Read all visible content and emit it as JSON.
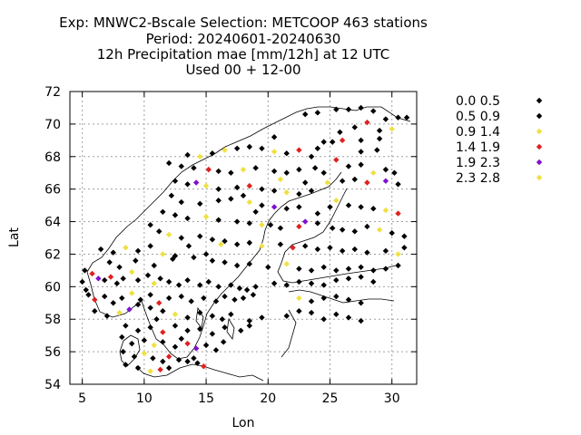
{
  "title_lines": [
    "Exp: MNWC2-Bscale   Selection: METCOOP    463 stations",
    "Period: 20240601-20240630",
    "12h Precipitation mae [mm/12h] at  12 UTC",
    "Used 00 + 12-00"
  ],
  "chart_data": {
    "type": "scatter",
    "xlabel": "Lon",
    "ylabel": "Lat",
    "xlim": [
      4,
      32
    ],
    "ylim": [
      54,
      72
    ],
    "xticks": [
      5,
      10,
      15,
      20,
      25,
      30
    ],
    "yticks": [
      54,
      56,
      58,
      60,
      62,
      64,
      66,
      68,
      70,
      72
    ],
    "grid": true,
    "legend_position": "right",
    "classes": [
      {
        "label": "0.0 0.5",
        "color": "#000000"
      },
      {
        "label": "0.5 0.9",
        "color": "#000000"
      },
      {
        "label": "0.9 1.4",
        "color": "#f0e040"
      },
      {
        "label": "1.4 1.9",
        "color": "#e02020"
      },
      {
        "label": "1.9 2.3",
        "color": "#8010d0"
      },
      {
        "label": "2.3 2.8",
        "color": "#f0e040"
      }
    ],
    "points": [
      [
        25.5,
        70.9,
        1
      ],
      [
        26.5,
        70.9,
        0
      ],
      [
        27.5,
        71.0,
        1
      ],
      [
        28.5,
        70.8,
        0
      ],
      [
        24.0,
        70.7,
        1
      ],
      [
        23.0,
        70.6,
        0
      ],
      [
        29.5,
        70.3,
        1
      ],
      [
        30.5,
        70.4,
        0
      ],
      [
        31.2,
        70.4,
        0
      ],
      [
        28.0,
        70.1,
        3
      ],
      [
        27.0,
        69.8,
        1
      ],
      [
        25.8,
        69.5,
        0
      ],
      [
        29.0,
        69.6,
        1
      ],
      [
        30.0,
        69.7,
        2
      ],
      [
        26.0,
        69.0,
        3
      ],
      [
        25.2,
        68.9,
        0
      ],
      [
        27.5,
        69.0,
        1
      ],
      [
        29.0,
        69.1,
        0
      ],
      [
        24.0,
        68.5,
        1
      ],
      [
        23.5,
        68.0,
        0
      ],
      [
        22.5,
        68.4,
        3
      ],
      [
        21.5,
        68.2,
        1
      ],
      [
        20.5,
        68.3,
        2
      ],
      [
        19.5,
        68.5,
        0
      ],
      [
        18.5,
        68.6,
        1
      ],
      [
        17.5,
        68.5,
        0
      ],
      [
        16.5,
        68.4,
        2
      ],
      [
        15.5,
        68.2,
        0
      ],
      [
        14.5,
        68.0,
        2
      ],
      [
        13.5,
        68.1,
        0
      ],
      [
        12.0,
        67.6,
        1
      ],
      [
        13.0,
        67.4,
        0
      ],
      [
        14.0,
        67.3,
        0
      ],
      [
        15.2,
        67.2,
        3
      ],
      [
        16.0,
        67.1,
        1
      ],
      [
        17.0,
        67.0,
        0
      ],
      [
        18.0,
        67.2,
        2
      ],
      [
        19.0,
        67.3,
        1
      ],
      [
        20.5,
        67.1,
        0
      ],
      [
        21.5,
        67.0,
        1
      ],
      [
        22.5,
        67.2,
        0
      ],
      [
        23.8,
        67.3,
        1
      ],
      [
        24.5,
        67.0,
        0
      ],
      [
        25.5,
        67.8,
        3
      ],
      [
        26.5,
        67.4,
        1
      ],
      [
        27.5,
        67.5,
        0
      ],
      [
        28.5,
        67.0,
        2
      ],
      [
        29.5,
        67.2,
        1
      ],
      [
        30.2,
        67.0,
        0
      ],
      [
        24.8,
        66.4,
        2
      ],
      [
        26.0,
        66.5,
        0
      ],
      [
        27.0,
        66.6,
        1
      ],
      [
        28.0,
        66.4,
        3
      ],
      [
        29.5,
        66.5,
        4
      ],
      [
        30.5,
        66.3,
        0
      ],
      [
        12.5,
        66.5,
        1
      ],
      [
        13.5,
        66.3,
        0
      ],
      [
        14.2,
        66.4,
        4
      ],
      [
        15.0,
        66.2,
        2
      ],
      [
        16.0,
        66.0,
        1
      ],
      [
        17.5,
        66.1,
        0
      ],
      [
        18.5,
        66.2,
        3
      ],
      [
        19.5,
        66.0,
        1
      ],
      [
        20.5,
        65.9,
        0
      ],
      [
        21.5,
        65.8,
        2
      ],
      [
        22.5,
        65.7,
        0
      ],
      [
        23.5,
        65.9,
        1
      ],
      [
        12.2,
        65.6,
        0
      ],
      [
        13.0,
        65.2,
        1
      ],
      [
        14.5,
        65.1,
        0
      ],
      [
        16.0,
        65.3,
        1
      ],
      [
        17.0,
        65.4,
        0
      ],
      [
        18.5,
        65.2,
        2
      ],
      [
        19.5,
        65.0,
        0
      ],
      [
        20.5,
        64.9,
        4
      ],
      [
        21.5,
        64.8,
        1
      ],
      [
        22.5,
        64.9,
        0
      ],
      [
        24.0,
        64.5,
        1
      ],
      [
        25.0,
        64.9,
        0
      ],
      [
        25.5,
        65.3,
        2
      ],
      [
        26.5,
        65.0,
        0
      ],
      [
        27.5,
        64.9,
        1
      ],
      [
        28.5,
        64.8,
        0
      ],
      [
        29.5,
        64.7,
        2
      ],
      [
        30.5,
        64.5,
        3
      ],
      [
        11.5,
        64.6,
        0
      ],
      [
        12.5,
        64.4,
        1
      ],
      [
        13.5,
        64.2,
        0
      ],
      [
        15.0,
        64.3,
        2
      ],
      [
        16.0,
        64.1,
        0
      ],
      [
        17.5,
        64.0,
        1
      ],
      [
        18.5,
        63.9,
        0
      ],
      [
        19.5,
        63.8,
        2
      ],
      [
        20.2,
        63.8,
        1
      ],
      [
        21.0,
        63.6,
        0
      ],
      [
        22.5,
        63.7,
        3
      ],
      [
        23.0,
        64.0,
        4
      ],
      [
        24.0,
        63.9,
        0
      ],
      [
        25.2,
        63.6,
        1
      ],
      [
        26.0,
        63.5,
        0
      ],
      [
        27.0,
        63.4,
        1
      ],
      [
        28.0,
        63.7,
        0
      ],
      [
        29.0,
        63.5,
        2
      ],
      [
        30.0,
        63.3,
        1
      ],
      [
        31.0,
        63.1,
        0
      ],
      [
        10.5,
        63.8,
        1
      ],
      [
        11.2,
        63.4,
        0
      ],
      [
        12.0,
        63.2,
        2
      ],
      [
        13.0,
        63.0,
        1
      ],
      [
        14.5,
        63.1,
        0
      ],
      [
        15.5,
        62.9,
        0
      ],
      [
        16.5,
        62.8,
        1
      ],
      [
        17.5,
        62.6,
        0
      ],
      [
        18.5,
        62.7,
        0
      ],
      [
        19.5,
        62.5,
        2
      ],
      [
        21.0,
        62.6,
        1
      ],
      [
        22.0,
        62.4,
        3
      ],
      [
        23.0,
        62.5,
        0
      ],
      [
        24.0,
        62.3,
        1
      ],
      [
        25.0,
        62.4,
        0
      ],
      [
        26.0,
        62.2,
        1
      ],
      [
        27.0,
        62.3,
        0
      ],
      [
        28.0,
        62.1,
        1
      ],
      [
        29.5,
        62.2,
        0
      ],
      [
        30.5,
        62.0,
        2
      ],
      [
        31.0,
        62.4,
        0
      ],
      [
        6.5,
        62.3,
        1
      ],
      [
        7.5,
        62.1,
        0
      ],
      [
        8.5,
        62.4,
        2
      ],
      [
        9.5,
        62.2,
        1
      ],
      [
        10.5,
        62.5,
        0
      ],
      [
        11.5,
        62.0,
        2
      ],
      [
        12.5,
        61.9,
        1
      ],
      [
        14.0,
        61.8,
        0
      ],
      [
        15.5,
        61.6,
        0
      ],
      [
        16.5,
        61.5,
        1
      ],
      [
        17.5,
        61.3,
        0
      ],
      [
        18.5,
        61.4,
        0
      ],
      [
        20.0,
        61.2,
        0
      ],
      [
        21.5,
        61.4,
        2
      ],
      [
        22.5,
        61.1,
        1
      ],
      [
        23.5,
        61.0,
        0
      ],
      [
        24.5,
        61.2,
        1
      ],
      [
        25.5,
        61.0,
        0
      ],
      [
        26.5,
        61.1,
        1
      ],
      [
        27.5,
        61.2,
        0
      ],
      [
        28.5,
        61.0,
        0
      ],
      [
        29.5,
        61.1,
        1
      ],
      [
        30.5,
        61.3,
        0
      ],
      [
        5.2,
        61.0,
        1
      ],
      [
        5.8,
        60.8,
        3
      ],
      [
        6.3,
        60.5,
        4
      ],
      [
        6.8,
        60.4,
        0
      ],
      [
        7.3,
        60.6,
        3
      ],
      [
        7.8,
        60.2,
        1
      ],
      [
        8.3,
        60.5,
        0
      ],
      [
        9.0,
        60.9,
        2
      ],
      [
        9.5,
        60.4,
        1
      ],
      [
        10.3,
        60.7,
        0
      ],
      [
        10.8,
        60.2,
        2
      ],
      [
        11.3,
        60.5,
        1
      ],
      [
        12.0,
        60.3,
        0
      ],
      [
        12.8,
        60.1,
        1
      ],
      [
        13.5,
        60.4,
        0
      ],
      [
        14.5,
        60.1,
        0
      ],
      [
        15.2,
        60.3,
        1
      ],
      [
        16.0,
        60.0,
        0
      ],
      [
        17.0,
        60.1,
        0
      ],
      [
        17.7,
        59.9,
        1
      ],
      [
        18.3,
        59.8,
        0
      ],
      [
        19.0,
        60.0,
        1
      ],
      [
        20.5,
        60.2,
        0
      ],
      [
        21.5,
        60.1,
        1
      ],
      [
        22.5,
        60.3,
        0
      ],
      [
        23.5,
        60.2,
        1
      ],
      [
        24.5,
        60.1,
        0
      ],
      [
        25.5,
        60.4,
        1
      ],
      [
        26.5,
        60.5,
        0
      ],
      [
        27.5,
        60.6,
        1
      ],
      [
        28.5,
        60.3,
        0
      ],
      [
        5.5,
        59.5,
        1
      ],
      [
        6.0,
        59.2,
        3
      ],
      [
        6.8,
        59.4,
        0
      ],
      [
        7.5,
        59.0,
        1
      ],
      [
        8.2,
        59.3,
        0
      ],
      [
        9.0,
        59.6,
        2
      ],
      [
        9.7,
        59.2,
        1
      ],
      [
        10.5,
        59.5,
        0
      ],
      [
        11.2,
        59.0,
        3
      ],
      [
        12.0,
        59.3,
        1
      ],
      [
        13.0,
        59.4,
        0
      ],
      [
        13.8,
        59.1,
        1
      ],
      [
        14.8,
        59.3,
        0
      ],
      [
        15.8,
        59.1,
        1
      ],
      [
        16.5,
        59.4,
        0
      ],
      [
        17.3,
        59.2,
        0
      ],
      [
        18.0,
        59.3,
        1
      ],
      [
        18.8,
        59.5,
        0
      ],
      [
        22.5,
        59.3,
        2
      ],
      [
        23.5,
        59.1,
        0
      ],
      [
        24.5,
        59.3,
        1
      ],
      [
        25.5,
        59.4,
        0
      ],
      [
        26.5,
        59.2,
        1
      ],
      [
        27.5,
        59.0,
        0
      ],
      [
        6.0,
        58.5,
        1
      ],
      [
        7.0,
        58.2,
        0
      ],
      [
        8.0,
        58.4,
        2
      ],
      [
        8.8,
        58.6,
        4
      ],
      [
        9.5,
        58.9,
        0
      ],
      [
        10.5,
        58.7,
        1
      ],
      [
        11.5,
        58.5,
        0
      ],
      [
        12.5,
        58.3,
        2
      ],
      [
        13.5,
        58.1,
        0
      ],
      [
        14.5,
        58.4,
        1
      ],
      [
        15.5,
        58.2,
        0
      ],
      [
        16.3,
        58.0,
        1
      ],
      [
        17.0,
        58.3,
        0
      ],
      [
        18.5,
        57.9,
        1
      ],
      [
        19.5,
        58.1,
        0
      ],
      [
        21.5,
        58.2,
        0
      ],
      [
        22.5,
        58.5,
        1
      ],
      [
        23.5,
        58.4,
        0
      ],
      [
        24.5,
        58.0,
        1
      ],
      [
        25.5,
        58.3,
        0
      ],
      [
        26.5,
        58.1,
        1
      ],
      [
        27.5,
        57.9,
        0
      ],
      [
        8.5,
        57.6,
        1
      ],
      [
        9.5,
        57.3,
        0
      ],
      [
        10.5,
        57.5,
        1
      ],
      [
        11.5,
        57.2,
        3
      ],
      [
        12.5,
        57.6,
        0
      ],
      [
        13.5,
        57.3,
        1
      ],
      [
        14.5,
        57.4,
        0
      ],
      [
        15.5,
        57.1,
        1
      ],
      [
        16.5,
        57.5,
        0
      ],
      [
        17.8,
        57.3,
        1
      ],
      [
        18.5,
        57.6,
        0
      ],
      [
        8.2,
        56.9,
        0
      ],
      [
        9.0,
        56.5,
        1
      ],
      [
        10.0,
        56.7,
        0
      ],
      [
        10.8,
        56.4,
        2
      ],
      [
        11.5,
        56.6,
        1
      ],
      [
        12.5,
        56.3,
        0
      ],
      [
        13.5,
        56.5,
        3
      ],
      [
        14.2,
        56.2,
        4
      ],
      [
        15.0,
        56.4,
        0
      ],
      [
        15.8,
        56.1,
        1
      ],
      [
        16.4,
        56.6,
        0
      ],
      [
        8.3,
        56.0,
        1
      ],
      [
        9.2,
        55.7,
        0
      ],
      [
        10.0,
        55.9,
        2
      ],
      [
        10.7,
        55.6,
        1
      ],
      [
        11.5,
        55.4,
        0
      ],
      [
        12.0,
        55.7,
        3
      ],
      [
        12.8,
        55.5,
        1
      ],
      [
        13.5,
        55.4,
        0
      ],
      [
        14.3,
        55.3,
        1
      ],
      [
        14.8,
        55.1,
        3
      ],
      [
        8.5,
        55.2,
        1
      ],
      [
        9.5,
        55.0,
        0
      ],
      [
        10.5,
        54.8,
        2
      ],
      [
        11.3,
        54.9,
        3
      ],
      [
        12.0,
        55.0,
        0
      ],
      [
        5.0,
        60.3,
        1
      ],
      [
        5.3,
        59.8,
        0
      ],
      [
        7.2,
        61.5,
        0
      ],
      [
        8.0,
        61.2,
        1
      ],
      [
        9.3,
        61.6,
        0
      ],
      [
        10.8,
        61.3,
        1
      ],
      [
        12.3,
        61.7,
        0
      ],
      [
        13.6,
        62.5,
        1
      ],
      [
        15.0,
        62.0,
        0
      ],
      [
        16.2,
        62.6,
        2
      ],
      [
        11.0,
        58.0,
        1
      ],
      [
        13.0,
        56.8,
        0
      ],
      [
        14.0,
        55.6,
        1
      ],
      [
        19.0,
        64.6,
        0
      ],
      [
        18.0,
        65.6,
        1
      ],
      [
        23.0,
        66.4,
        0
      ],
      [
        21.0,
        66.6,
        2
      ],
      [
        27.5,
        68.3,
        0
      ],
      [
        28.8,
        68.4,
        1
      ],
      [
        24.5,
        68.9,
        0
      ],
      [
        20.5,
        69.2,
        0
      ]
    ]
  }
}
